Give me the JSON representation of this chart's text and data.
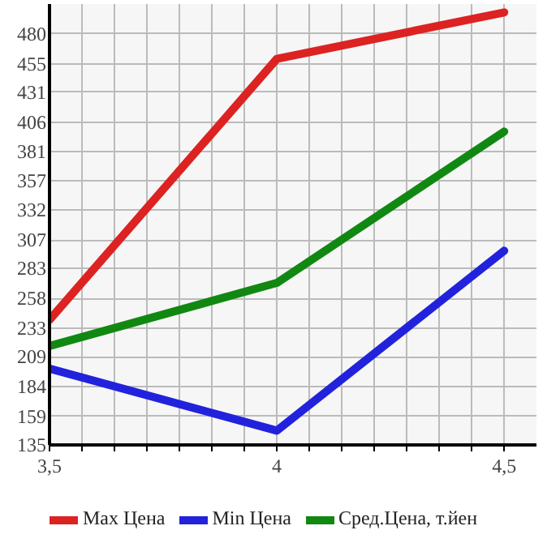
{
  "chart_data": {
    "type": "line",
    "x": [
      3.5,
      4,
      4.5
    ],
    "series": [
      {
        "name": "Max Цена",
        "color": "#dd2222",
        "values": [
          240,
          459,
          498
        ]
      },
      {
        "name": "Min Цена",
        "color": "#2222dd",
        "values": [
          199,
          147,
          298
        ]
      },
      {
        "name": "Сред.Цена, т.йен",
        "color": "#118811",
        "values": [
          218,
          271,
          398
        ]
      }
    ],
    "xlim": [
      3.5,
      4.571
    ],
    "xticks": [
      {
        "value": 3.5,
        "label": "3,5"
      },
      {
        "value": 3.571,
        "label": null
      },
      {
        "value": 3.643,
        "label": null
      },
      {
        "value": 3.714,
        "label": null
      },
      {
        "value": 3.786,
        "label": null
      },
      {
        "value": 3.857,
        "label": null
      },
      {
        "value": 3.929,
        "label": null
      },
      4,
      {
        "value": 4.071,
        "label": null
      },
      {
        "value": 4.143,
        "label": null
      },
      {
        "value": 4.214,
        "label": null
      },
      {
        "value": 4.286,
        "label": null
      },
      {
        "value": 4.357,
        "label": null
      },
      {
        "value": 4.429,
        "label": null
      },
      {
        "value": 4.5,
        "label": "4,5"
      }
    ],
    "ylim": [
      135,
      505
    ],
    "yticks": [
      135,
      159,
      184,
      209,
      233,
      258,
      283,
      307,
      332,
      357,
      381,
      406,
      431,
      455,
      480
    ],
    "grid": true,
    "legend": "bottom",
    "marker": "none",
    "line_style": "solid"
  }
}
